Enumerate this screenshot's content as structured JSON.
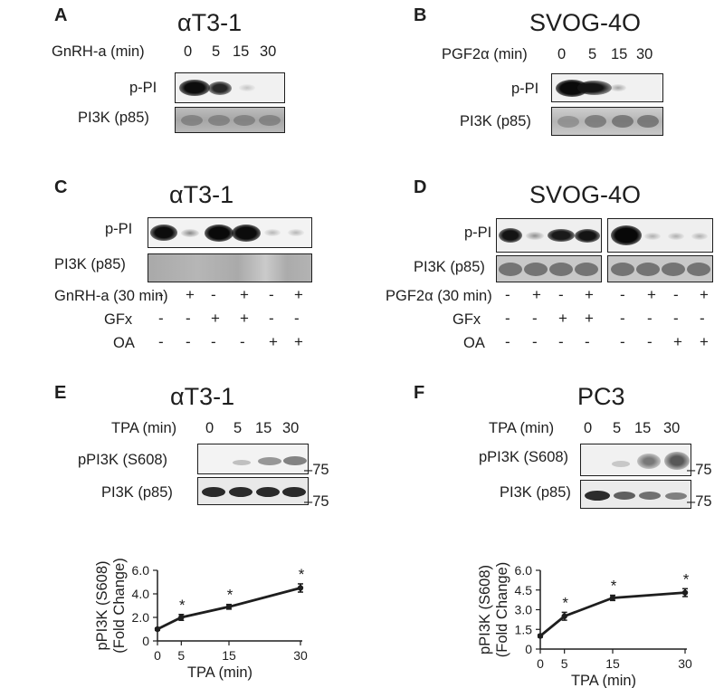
{
  "panel_a": {
    "letter": "A",
    "title": "αT3-1",
    "time_label": "GnRH-a (min)",
    "times": [
      "0",
      "5",
      "15",
      "30"
    ],
    "blot_labels": [
      "p-PI",
      "PI3K (p85)"
    ]
  },
  "panel_b": {
    "letter": "B",
    "title": "SVOG-4O",
    "time_label": "PGF2α (min)",
    "times": [
      "0",
      "5",
      "15",
      "30"
    ],
    "blot_labels": [
      "p-PI",
      "PI3K (p85)"
    ]
  },
  "panel_c": {
    "letter": "C",
    "title": "αT3-1",
    "blot_labels": [
      "p-PI",
      "PI3K (p85)"
    ],
    "treatments": [
      {
        "label": "GnRH-a (30 min)",
        "signs": [
          "-",
          "+",
          "-",
          "+",
          "-",
          "+"
        ]
      },
      {
        "label": "GFx",
        "signs": [
          "-",
          "-",
          "+",
          "+",
          "-",
          "-"
        ]
      },
      {
        "label": "OA",
        "signs": [
          "-",
          "-",
          "-",
          "-",
          "+",
          "+"
        ]
      }
    ]
  },
  "panel_d": {
    "letter": "D",
    "title": "SVOG-4O",
    "blot_labels": [
      "p-PI",
      "PI3K (p85)"
    ],
    "treatments": [
      {
        "label": "PGF2α (30 min)",
        "signs": [
          "-",
          "+",
          "-",
          "+",
          "-",
          "+",
          "-",
          "+"
        ]
      },
      {
        "label": "GFx",
        "signs": [
          "-",
          "-",
          "+",
          "+",
          "-",
          "-",
          "-",
          "-"
        ]
      },
      {
        "label": "OA",
        "signs": [
          "-",
          "-",
          "-",
          "-",
          "-",
          "-",
          "+",
          "+"
        ]
      }
    ]
  },
  "panel_e": {
    "letter": "E",
    "title": "αT3-1",
    "time_label": "TPA (min)",
    "times": [
      "0",
      "5",
      "15",
      "30"
    ],
    "blot_labels": [
      "pPI3K (S608)",
      "PI3K (p85)"
    ],
    "mw_markers": [
      "75",
      "75"
    ]
  },
  "panel_f": {
    "letter": "F",
    "title": "PC3",
    "time_label": "TPA (min)",
    "times": [
      "0",
      "5",
      "15",
      "30"
    ],
    "blot_labels": [
      "pPI3K (S608)",
      "PI3K (p85)"
    ],
    "mw_markers": [
      "75",
      "75"
    ]
  },
  "chart_data": [
    {
      "type": "line",
      "x": [
        0,
        5,
        15,
        30
      ],
      "y": [
        1.0,
        2.0,
        2.9,
        4.5
      ],
      "error": [
        0.1,
        0.25,
        0.2,
        0.35
      ],
      "significance": [
        "",
        "*",
        "*",
        "*"
      ],
      "xlabel": "TPA (min)",
      "ylabel": "pPI3K (S608) (Fold Change)",
      "ylabel_lines": [
        "pPI3K (S608)",
        "(Fold Change)"
      ],
      "xticks": [
        "0",
        "5",
        "15",
        "30"
      ],
      "yticks": [
        "0",
        "2.0",
        "4.0",
        "6.0"
      ],
      "xlim": [
        0,
        30
      ],
      "ylim": [
        0,
        6
      ]
    },
    {
      "type": "line",
      "x": [
        0,
        5,
        15,
        30
      ],
      "y": [
        1.0,
        2.5,
        3.9,
        4.3
      ],
      "error": [
        0.1,
        0.3,
        0.2,
        0.3
      ],
      "significance": [
        "",
        "*",
        "*",
        "*"
      ],
      "xlabel": "TPA (min)",
      "ylabel": "pPI3K (S608) (Fold Change)",
      "ylabel_lines": [
        "pPI3K (S608)",
        "(Fold Change)"
      ],
      "xticks": [
        "0",
        "5",
        "15",
        "30"
      ],
      "yticks": [
        "0",
        "1.5",
        "3.0",
        "4.5",
        "6.0"
      ],
      "xlim": [
        0,
        30
      ],
      "ylim": [
        0,
        6
      ]
    }
  ]
}
